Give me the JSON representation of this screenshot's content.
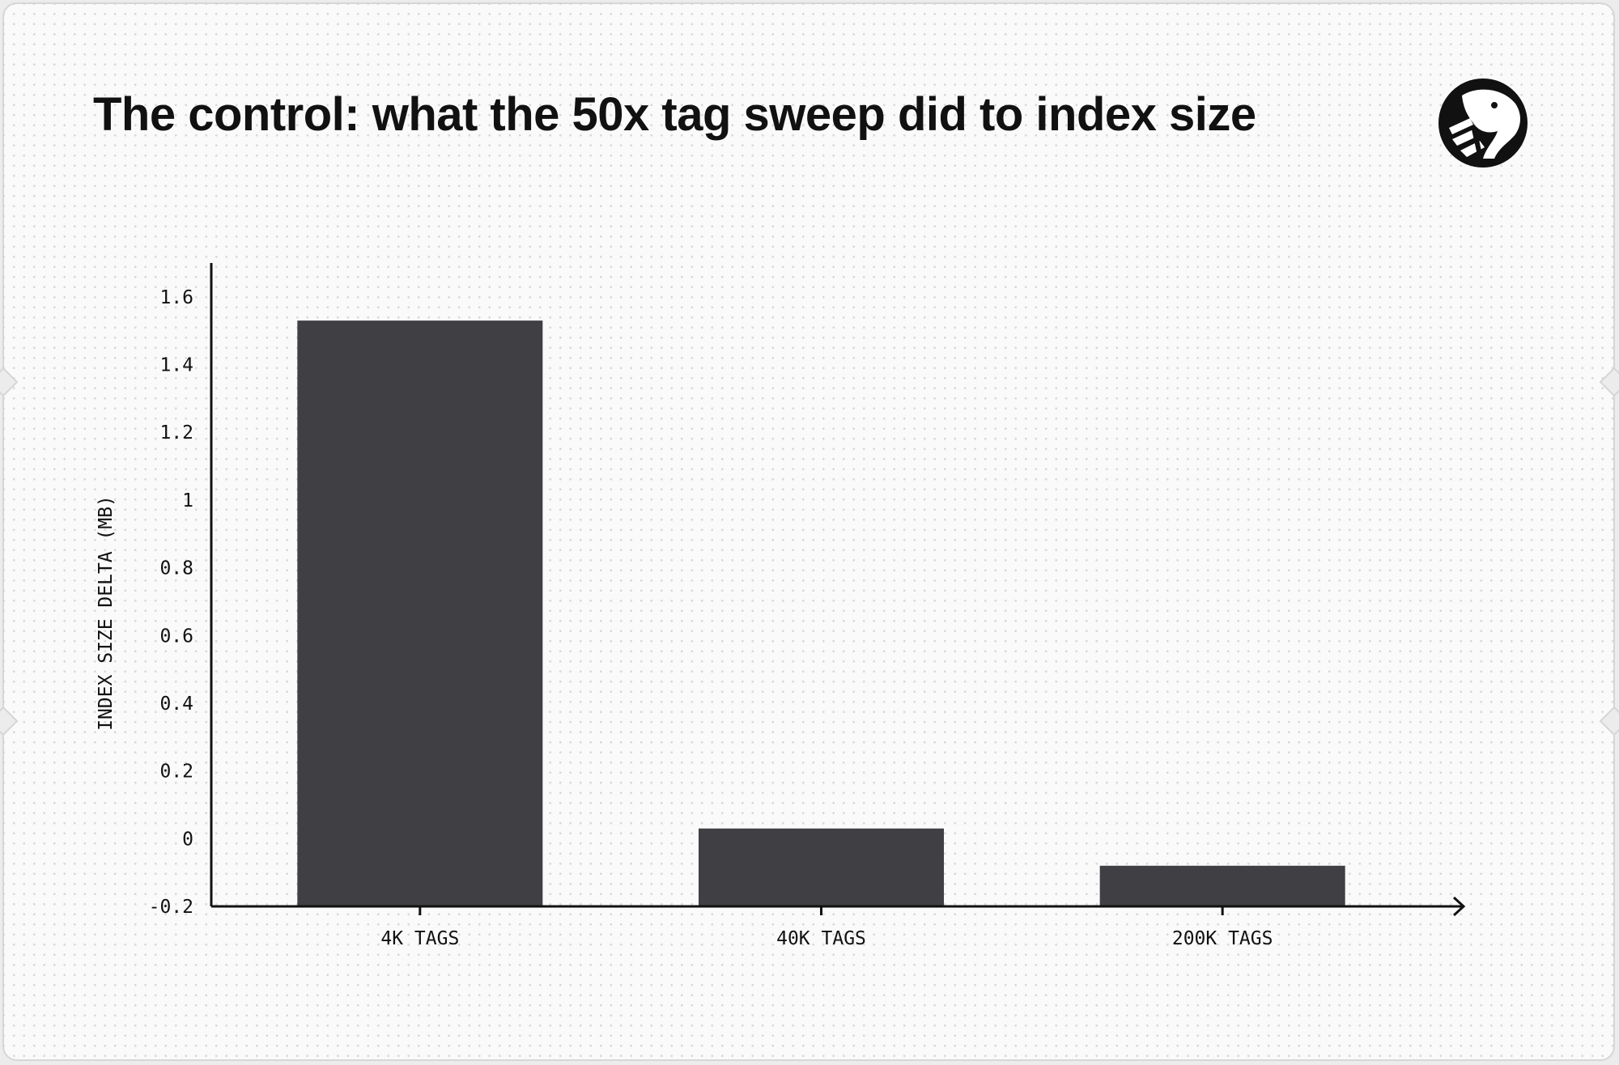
{
  "title": "The control: what the 50x tag sweep did to index size",
  "logo": {
    "icon": "dog-head-logo-icon"
  },
  "colors": {
    "bar": "#3f3f44",
    "axis": "#111111",
    "background": "#fafafa"
  },
  "chart_data": {
    "type": "bar",
    "categories": [
      "4K TAGS",
      "40K TAGS",
      "200K TAGS"
    ],
    "values": [
      1.53,
      0.03,
      -0.08
    ],
    "title": "The control: what the 50x tag sweep did to index size",
    "xlabel": "",
    "ylabel": "INDEX SIZE DELTA (MB)",
    "ylim": [
      -0.2,
      1.7
    ],
    "yticks": [
      -0.2,
      0,
      0.2,
      0.4,
      0.6,
      0.8,
      1,
      1.2,
      1.4,
      1.6
    ],
    "ytick_labels": [
      "-0.2",
      "0",
      "0.2",
      "0.4",
      "0.6",
      "0.8",
      "1",
      "1.2",
      "1.4",
      "1.6"
    ],
    "grid": false,
    "legend": "none"
  }
}
